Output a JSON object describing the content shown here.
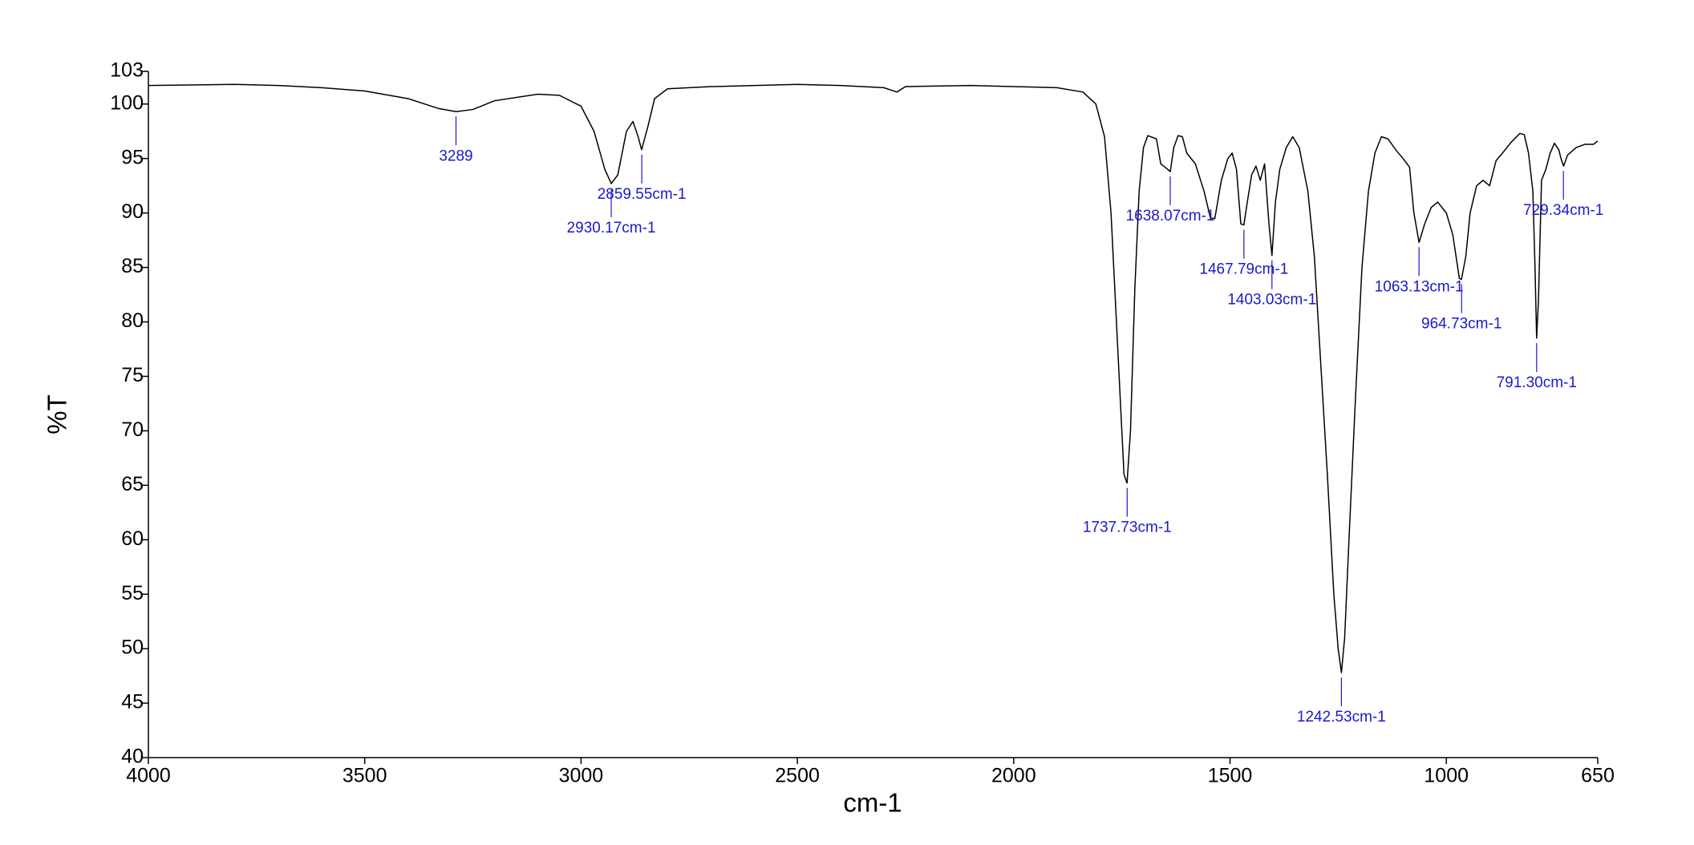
{
  "chart_data": {
    "type": "line",
    "x_label": "cm-1",
    "y_label": "%T",
    "color": "#000000",
    "peak_color": "#1a1acc",
    "grid": false,
    "xlim": [
      4000,
      650
    ],
    "ylim": [
      40,
      103
    ],
    "xticks": [
      4000,
      3500,
      3000,
      2500,
      2000,
      1500,
      1000,
      650
    ],
    "yticks": [
      40,
      45,
      50,
      55,
      60,
      65,
      70,
      75,
      80,
      85,
      90,
      95,
      100,
      103
    ],
    "x": [
      4000,
      3800,
      3700,
      3600,
      3500,
      3400,
      3330,
      3289,
      3250,
      3200,
      3100,
      3050,
      3000,
      2970,
      2945,
      2930,
      2915,
      2895,
      2880,
      2868,
      2860,
      2845,
      2830,
      2800,
      2700,
      2500,
      2400,
      2300,
      2270,
      2250,
      2100,
      2000,
      1900,
      1840,
      1810,
      1790,
      1775,
      1760,
      1745,
      1738,
      1730,
      1720,
      1710,
      1700,
      1690,
      1670,
      1660,
      1650,
      1638,
      1630,
      1620,
      1610,
      1600,
      1580,
      1560,
      1545,
      1535,
      1520,
      1505,
      1495,
      1485,
      1475,
      1468,
      1460,
      1450,
      1440,
      1430,
      1420,
      1410,
      1403,
      1395,
      1385,
      1370,
      1355,
      1340,
      1320,
      1305,
      1290,
      1275,
      1260,
      1250,
      1242.5,
      1235,
      1225,
      1210,
      1195,
      1180,
      1165,
      1150,
      1135,
      1115,
      1100,
      1085,
      1075,
      1063,
      1050,
      1035,
      1020,
      1000,
      985,
      970,
      965,
      955,
      945,
      930,
      915,
      900,
      885,
      870,
      850,
      830,
      820,
      810,
      800,
      795,
      791.3,
      787,
      780,
      770,
      760,
      750,
      740,
      735,
      729,
      720,
      700,
      680,
      660,
      650
    ],
    "values": [
      101.7,
      101.8,
      101.7,
      101.5,
      101.2,
      100.5,
      99.6,
      99.3,
      99.5,
      100.3,
      100.9,
      100.8,
      99.8,
      97.5,
      94,
      92.7,
      93.5,
      97.5,
      98.4,
      97,
      95.8,
      98,
      100.5,
      101.4,
      101.6,
      101.8,
      101.7,
      101.5,
      101.1,
      101.6,
      101.7,
      101.6,
      101.5,
      101.1,
      100,
      97,
      90,
      78,
      66,
      65.2,
      70,
      83,
      92,
      96,
      97.1,
      96.8,
      94.5,
      94.2,
      93.8,
      96,
      97.1,
      97,
      95.5,
      94.5,
      92,
      89.5,
      89.5,
      93,
      95,
      95.5,
      94,
      89,
      88.9,
      91,
      93.5,
      94.3,
      93,
      94.5,
      89,
      86.1,
      91,
      94,
      96,
      97,
      96,
      92,
      86,
      76,
      66,
      55,
      50,
      47.8,
      51,
      60,
      73,
      85,
      92,
      95.5,
      97,
      96.8,
      95.7,
      95,
      94.2,
      90,
      87.3,
      89,
      90.5,
      91,
      90,
      88,
      84,
      83.9,
      86,
      90,
      92.5,
      93,
      92.5,
      94.8,
      95.5,
      96.5,
      97.3,
      97.2,
      95.5,
      92,
      85,
      78.5,
      82,
      93,
      94,
      95.5,
      96.4,
      95.8,
      95,
      94.3,
      95.3,
      96,
      96.3,
      96.3,
      96.6
    ],
    "peaks": [
      {
        "x": 3289,
        "y": 99.3,
        "label": "3289"
      },
      {
        "x": 2930.17,
        "y": 92.7,
        "label": "2930.17cm-1"
      },
      {
        "x": 2859.55,
        "y": 95.8,
        "label": "2859.55cm-1"
      },
      {
        "x": 1737.73,
        "y": 65.2,
        "label": "1737.73cm-1"
      },
      {
        "x": 1638.07,
        "y": 93.8,
        "label": "1638.07cm-1"
      },
      {
        "x": 1467.79,
        "y": 88.9,
        "label": "1467.79cm-1"
      },
      {
        "x": 1403.03,
        "y": 86.1,
        "label": "1403.03cm-1"
      },
      {
        "x": 1242.53,
        "y": 47.8,
        "label": "1242.53cm-1"
      },
      {
        "x": 1063.13,
        "y": 87.3,
        "label": "1063.13cm-1"
      },
      {
        "x": 964.73,
        "y": 83.9,
        "label": "964.73cm-1"
      },
      {
        "x": 791.3,
        "y": 78.5,
        "label": "791.30cm-1"
      },
      {
        "x": 729.34,
        "y": 94.3,
        "label": "729.34cm-1"
      }
    ]
  }
}
